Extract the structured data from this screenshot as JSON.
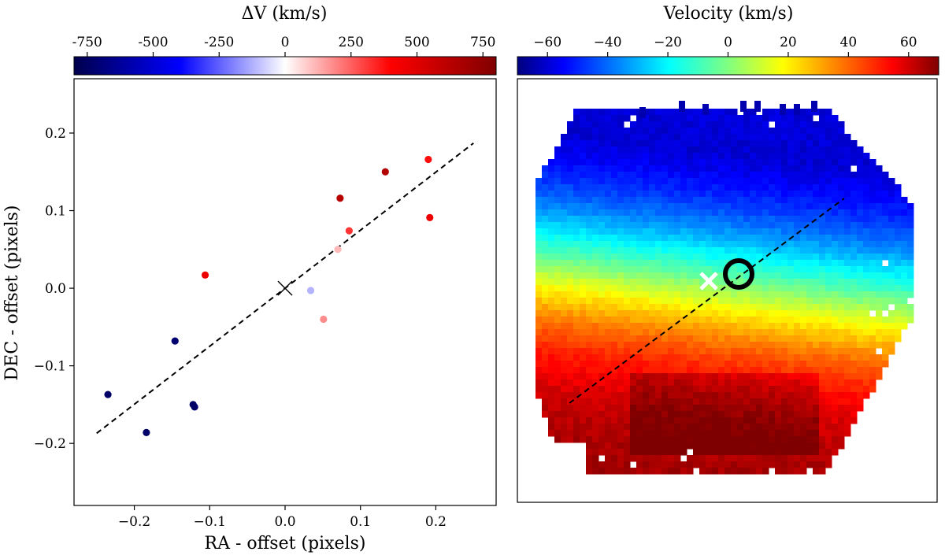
{
  "figure": {
    "left_colorbar_label": "ΔV (km/s)",
    "right_colorbar_label": "Velocity (km/s)"
  },
  "chart_data": [
    {
      "type": "scatter",
      "xlabel": "RA - offset (pixels)",
      "ylabel": "DEC - offset (pixels)",
      "xlim": [
        -0.28,
        0.28
      ],
      "ylim": [
        -0.28,
        0.27
      ],
      "xticks": [
        -0.2,
        -0.1,
        0.0,
        0.1,
        0.2
      ],
      "xtick_labels": [
        "−0.2",
        "−0.1",
        "0.0",
        "0.1",
        "0.2"
      ],
      "yticks": [
        -0.2,
        -0.1,
        0.0,
        0.1,
        0.2
      ],
      "ytick_labels": [
        "−0.2",
        "−0.1",
        "0.0",
        "0.1",
        "0.2"
      ],
      "colorbar": {
        "label": "ΔV (km/s)",
        "range": [
          -800,
          800
        ],
        "ticks": [
          -750,
          -500,
          -250,
          0,
          250,
          500,
          750
        ],
        "tick_labels": [
          "-750",
          "-500",
          "-250",
          "0",
          "250",
          "500",
          "750"
        ],
        "colormap": "seismic",
        "colors": [
          "#00007a",
          "#0000ff",
          "#ffffff",
          "#ff0000",
          "#800000"
        ]
      },
      "points": [
        {
          "x": -0.235,
          "y": -0.137,
          "dv": -740
        },
        {
          "x": -0.184,
          "y": -0.186,
          "dv": -740
        },
        {
          "x": -0.146,
          "y": -0.068,
          "dv": -720
        },
        {
          "x": -0.122,
          "y": -0.15,
          "dv": -740
        },
        {
          "x": -0.12,
          "y": -0.153,
          "dv": -740
        },
        {
          "x": -0.106,
          "y": 0.017,
          "dv": 450
        },
        {
          "x": 0.034,
          "y": -0.003,
          "dv": -120
        },
        {
          "x": 0.051,
          "y": -0.04,
          "dv": 180
        },
        {
          "x": 0.07,
          "y": 0.05,
          "dv": 110
        },
        {
          "x": 0.073,
          "y": 0.116,
          "dv": 620
        },
        {
          "x": 0.085,
          "y": 0.074,
          "dv": 320
        },
        {
          "x": 0.133,
          "y": 0.15,
          "dv": 640
        },
        {
          "x": 0.19,
          "y": 0.166,
          "dv": 380
        },
        {
          "x": 0.192,
          "y": 0.091,
          "dv": 450
        }
      ],
      "marker_center": {
        "x": 0.0,
        "y": 0.0,
        "symbol": "x"
      },
      "fit_line": {
        "x": [
          -0.25,
          0.25
        ],
        "y": [
          -0.187,
          0.187
        ],
        "style": "dashed"
      },
      "grid": false
    },
    {
      "type": "heatmap",
      "colorbar": {
        "label": "Velocity (km/s)",
        "range": [
          -70,
          70
        ],
        "ticks": [
          -60,
          -40,
          -20,
          0,
          20,
          40,
          60
        ],
        "tick_labels": [
          "−60",
          "−40",
          "−20",
          "0",
          "20",
          "40",
          "60"
        ],
        "colormap": "jet"
      },
      "description_values": {
        "north_region": -65,
        "center": 0,
        "south_region": 55
      },
      "markers": [
        "cross-white",
        "circle-black"
      ],
      "fit_line": {
        "style": "dashed"
      },
      "axes_ticks": false
    }
  ]
}
